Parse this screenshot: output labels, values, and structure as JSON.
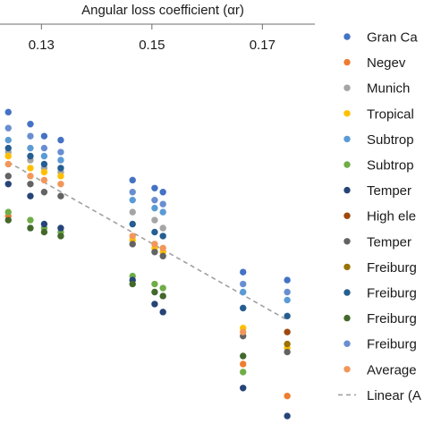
{
  "chart_data": {
    "type": "scatter",
    "xlabel": "Angular loss coefficient (αr)",
    "x_ticks": [
      0.13,
      0.15,
      0.17
    ],
    "x_tick_labels": [
      "0.13",
      "0.15",
      "0.17"
    ],
    "xlim": [
      0.1225,
      0.1795
    ],
    "ylim": [
      0,
      10
    ],
    "x_axis_position": "top",
    "grid": false,
    "legend_position": "right",
    "series": [
      {
        "name": "Gran Ca",
        "color": "#4472c4",
        "points": [
          [
            0.124,
            7.8
          ],
          [
            0.128,
            7.5
          ],
          [
            0.1305,
            7.2
          ],
          [
            0.1335,
            7.1
          ],
          [
            0.1465,
            6.1
          ],
          [
            0.1505,
            5.9
          ],
          [
            0.152,
            5.8
          ],
          [
            0.1665,
            3.8
          ],
          [
            0.1745,
            3.6
          ]
        ]
      },
      {
        "name": "Negev",
        "color": "#ed7d31",
        "points": [
          [
            0.124,
            5.2
          ],
          [
            0.1665,
            1.5
          ],
          [
            0.1745,
            0.7
          ]
        ]
      },
      {
        "name": "Munich",
        "color": "#a5a5a5",
        "points": [
          [
            0.124,
            6.8
          ],
          [
            0.128,
            6.6
          ],
          [
            0.1305,
            6.4
          ],
          [
            0.1335,
            6.3
          ],
          [
            0.1465,
            5.3
          ],
          [
            0.1505,
            5.1
          ],
          [
            0.152,
            4.9
          ]
        ]
      },
      {
        "name": "Tropical",
        "color": "#ffc000",
        "points": [
          [
            0.124,
            6.7
          ],
          [
            0.128,
            6.4
          ],
          [
            0.1305,
            6.3
          ],
          [
            0.1335,
            6.2
          ],
          [
            0.1465,
            4.6
          ],
          [
            0.1505,
            4.4
          ],
          [
            0.152,
            4.3
          ],
          [
            0.1665,
            2.4
          ],
          [
            0.1745,
            1.9
          ]
        ]
      },
      {
        "name": "Subtrop",
        "color": "#5b9bd5",
        "points": [
          [
            0.124,
            7.1
          ],
          [
            0.128,
            6.9
          ],
          [
            0.1305,
            6.7
          ],
          [
            0.1335,
            6.6
          ],
          [
            0.1465,
            5.6
          ],
          [
            0.1505,
            5.4
          ],
          [
            0.152,
            5.3
          ],
          [
            0.1665,
            3.3
          ],
          [
            0.1745,
            3.1
          ]
        ]
      },
      {
        "name": "Subtrop",
        "color": "#70ad47",
        "points": [
          [
            0.124,
            5.3
          ],
          [
            0.128,
            5.1
          ],
          [
            0.1305,
            4.9
          ],
          [
            0.1335,
            4.8
          ],
          [
            0.1465,
            3.7
          ],
          [
            0.1505,
            3.5
          ],
          [
            0.152,
            3.4
          ],
          [
            0.1665,
            1.3
          ]
        ]
      },
      {
        "name": "Temper",
        "color": "#264478",
        "points": [
          [
            0.124,
            6.0
          ],
          [
            0.128,
            5.7
          ],
          [
            0.1305,
            5.0
          ],
          [
            0.1335,
            4.9
          ],
          [
            0.1465,
            3.6
          ],
          [
            0.1505,
            3.0
          ],
          [
            0.152,
            2.8
          ],
          [
            0.1665,
            0.9
          ],
          [
            0.1745,
            0.2
          ]
        ]
      },
      {
        "name": "High ele",
        "color": "#9e480e",
        "points": [
          [
            0.1745,
            2.3
          ]
        ]
      },
      {
        "name": "Temper",
        "color": "#636363",
        "points": [
          [
            0.124,
            6.2
          ],
          [
            0.128,
            6.0
          ],
          [
            0.1305,
            5.8
          ],
          [
            0.1335,
            5.7
          ],
          [
            0.1465,
            4.5
          ],
          [
            0.1505,
            4.3
          ],
          [
            0.152,
            4.2
          ],
          [
            0.1665,
            2.2
          ],
          [
            0.1745,
            1.8
          ]
        ]
      },
      {
        "name": "Freiburg",
        "color": "#997300",
        "points": [
          [
            0.1745,
            2.0
          ]
        ]
      },
      {
        "name": "Freiburg",
        "color": "#255e91",
        "points": [
          [
            0.124,
            6.9
          ],
          [
            0.128,
            6.7
          ],
          [
            0.1305,
            6.5
          ],
          [
            0.1335,
            6.4
          ],
          [
            0.1465,
            5.0
          ],
          [
            0.1505,
            4.8
          ],
          [
            0.152,
            4.7
          ],
          [
            0.1665,
            2.9
          ],
          [
            0.1745,
            2.7
          ]
        ]
      },
      {
        "name": "Freiburg",
        "color": "#43682b",
        "points": [
          [
            0.124,
            5.1
          ],
          [
            0.128,
            4.9
          ],
          [
            0.1305,
            4.8
          ],
          [
            0.1335,
            4.7
          ],
          [
            0.1465,
            3.5
          ],
          [
            0.1505,
            3.3
          ],
          [
            0.152,
            3.2
          ],
          [
            0.1665,
            1.7
          ]
        ]
      },
      {
        "name": "Freiburg",
        "color": "#698ed0",
        "points": [
          [
            0.124,
            7.4
          ],
          [
            0.128,
            7.2
          ],
          [
            0.1305,
            6.9
          ],
          [
            0.1335,
            6.8
          ],
          [
            0.1465,
            5.8
          ],
          [
            0.1505,
            5.6
          ],
          [
            0.152,
            5.5
          ],
          [
            0.1665,
            3.5
          ],
          [
            0.1745,
            3.3
          ]
        ]
      },
      {
        "name": "Average",
        "color": "#f1975a",
        "points": [
          [
            0.124,
            6.5
          ],
          [
            0.128,
            6.2
          ],
          [
            0.1305,
            6.1
          ],
          [
            0.1335,
            6.0
          ],
          [
            0.1465,
            4.7
          ],
          [
            0.1505,
            4.5
          ],
          [
            0.152,
            4.4
          ],
          [
            0.1665,
            2.3
          ]
        ]
      }
    ],
    "trendline": {
      "name": "Linear (A",
      "color": "#a0a0a0",
      "dash": true,
      "from": [
        0.124,
        6.55
      ],
      "to": [
        0.1745,
        2.6
      ]
    }
  }
}
